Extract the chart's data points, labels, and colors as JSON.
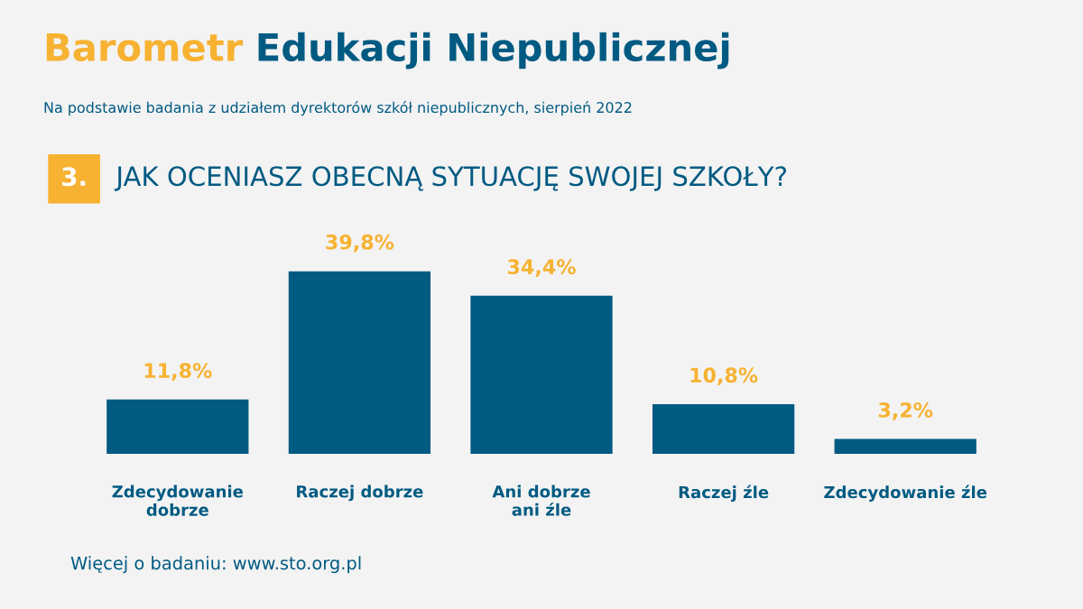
{
  "chart_data": {
    "type": "bar",
    "title": "Barometr Edukacji Niepublicznej",
    "subtitle": "Na podstawie badania z udziałem dyrektorów szkół niepublicznych, sierpień 2022",
    "annotations": [
      "3.",
      "JAK OCENIASZ OBECNĄ SYTUACJĘ SWOJEJ SZKOŁY?",
      "Więcej o badaniu: www.sto.org.pl"
    ],
    "categories": [
      "Zdecydowanie\ndobrze",
      "Raczej dobrze",
      "Ani dobrze\nani źle",
      "Raczej źle",
      "Zdecydowanie źle"
    ],
    "values": [
      11.8,
      39.8,
      34.4,
      10.8,
      3.2
    ],
    "value_labels": [
      "11,8%",
      "39,8%",
      "34,4%",
      "10,8%",
      "3,2%"
    ],
    "color": "#005a82",
    "grid": false,
    "legend": false
  }
}
